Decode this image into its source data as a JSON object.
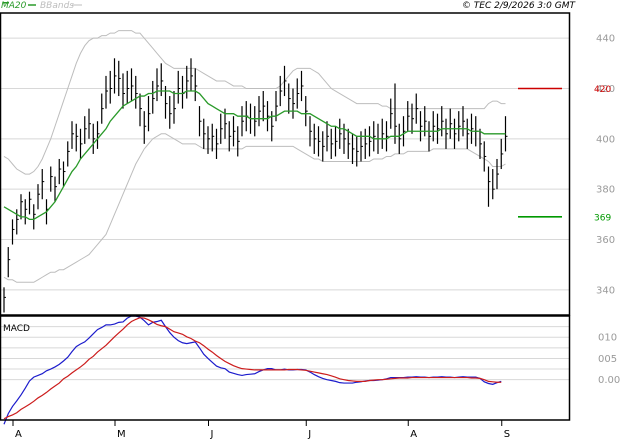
{
  "header": {
    "legend": [
      {
        "label": "MA20",
        "color": "#2a9a2a"
      },
      {
        "label": "BBands",
        "color": "#bdbdbd"
      }
    ],
    "copyright": "© TEC 2/9/2026 3:0 GMT"
  },
  "chart_data": [
    {
      "type": "candlestick",
      "title": "",
      "ylim": [
        330,
        450
      ],
      "y_ticks": [
        340,
        360,
        380,
        400,
        420,
        440
      ],
      "x_ticks": [
        {
          "label": "A",
          "bar": 0
        },
        {
          "label": "M",
          "bar": 24
        },
        {
          "label": "J",
          "bar": 46
        },
        {
          "label": "J",
          "bar": 69
        },
        {
          "label": "A",
          "bar": 93
        },
        {
          "label": "S",
          "bar": 115
        }
      ],
      "grid": true,
      "series": [
        {
          "name": "MA20",
          "color": "#2a9a2a"
        },
        {
          "name": "BBands",
          "color": "#bdbdbd"
        }
      ],
      "close": [
        337,
        352,
        364,
        368,
        375,
        372,
        376,
        370,
        378,
        383,
        372,
        385,
        381,
        388,
        387,
        395,
        402,
        401,
        398,
        404,
        406,
        400,
        402,
        412,
        419,
        420,
        425,
        424,
        418,
        420,
        421,
        418,
        412,
        405,
        410,
        416,
        421,
        423,
        414,
        410,
        412,
        420,
        418,
        423,
        425,
        421,
        407,
        402,
        400,
        401,
        398,
        404,
        406,
        401,
        403,
        399,
        407,
        409,
        408,
        407,
        411,
        413,
        409,
        405,
        413,
        419,
        423,
        416,
        414,
        418,
        421,
        411,
        403,
        400,
        399,
        397,
        401,
        398,
        399,
        402,
        400,
        398,
        396,
        395,
        397,
        398,
        399,
        401,
        400,
        402,
        401,
        410,
        405,
        400,
        403,
        409,
        408,
        412,
        405,
        407,
        401,
        405,
        404,
        407,
        402,
        406,
        402,
        405,
        407,
        402,
        404,
        403,
        398,
        393,
        383,
        380,
        386,
        394,
        401
      ],
      "high": [
        341,
        357,
        368,
        372,
        378,
        376,
        379,
        374,
        382,
        388,
        376,
        389,
        385,
        392,
        391,
        399,
        407,
        406,
        404,
        409,
        412,
        406,
        407,
        418,
        425,
        427,
        432,
        431,
        426,
        427,
        428,
        425,
        418,
        411,
        417,
        423,
        428,
        430,
        421,
        417,
        419,
        427,
        425,
        429,
        432,
        428,
        413,
        408,
        405,
        406,
        404,
        410,
        412,
        407,
        409,
        405,
        413,
        415,
        414,
        413,
        417,
        419,
        415,
        411,
        419,
        425,
        429,
        422,
        420,
        424,
        427,
        417,
        409,
        406,
        405,
        403,
        407,
        404,
        405,
        408,
        406,
        404,
        402,
        401,
        403,
        404,
        405,
        407,
        406,
        408,
        407,
        416,
        422,
        406,
        409,
        415,
        414,
        418,
        411,
        413,
        407,
        411,
        410,
        413,
        408,
        412,
        408,
        411,
        413,
        408,
        410,
        409,
        404,
        399,
        389,
        388,
        392,
        400,
        409
      ],
      "low": [
        331,
        345,
        358,
        362,
        368,
        366,
        370,
        364,
        372,
        376,
        366,
        379,
        375,
        382,
        381,
        389,
        396,
        395,
        392,
        398,
        400,
        394,
        396,
        406,
        412,
        414,
        418,
        417,
        412,
        414,
        415,
        412,
        405,
        398,
        403,
        410,
        415,
        417,
        408,
        404,
        406,
        414,
        412,
        416,
        419,
        415,
        401,
        396,
        394,
        395,
        392,
        398,
        400,
        395,
        397,
        393,
        401,
        403,
        402,
        401,
        405,
        407,
        403,
        399,
        407,
        413,
        417,
        410,
        408,
        412,
        415,
        405,
        397,
        394,
        393,
        391,
        395,
        392,
        393,
        396,
        394,
        392,
        390,
        389,
        391,
        392,
        393,
        395,
        394,
        396,
        395,
        404,
        398,
        394,
        397,
        403,
        402,
        406,
        399,
        401,
        395,
        399,
        398,
        401,
        396,
        400,
        396,
        399,
        401,
        396,
        398,
        397,
        392,
        387,
        373,
        376,
        380,
        388,
        395
      ],
      "ma20": [
        373,
        372,
        371,
        370,
        369,
        369,
        368,
        368,
        369,
        370,
        371,
        373,
        375,
        378,
        381,
        384,
        387,
        389,
        392,
        394,
        396,
        398,
        400,
        402,
        404,
        407,
        409,
        411,
        413,
        414,
        415,
        416,
        417,
        417,
        418,
        418,
        419,
        419,
        419,
        419,
        418,
        418,
        418,
        419,
        419,
        419,
        418,
        416,
        414,
        413,
        412,
        411,
        410,
        410,
        410,
        409,
        409,
        409,
        408,
        408,
        408,
        408,
        408,
        409,
        409,
        410,
        411,
        411,
        411,
        411,
        410,
        410,
        410,
        409,
        408,
        407,
        406,
        405,
        405,
        404,
        404,
        403,
        402,
        401,
        401,
        401,
        401,
        400,
        400,
        400,
        400,
        401,
        401,
        401,
        402,
        403,
        403,
        403,
        403,
        403,
        403,
        403,
        403,
        404,
        404,
        404,
        404,
        404,
        404,
        404,
        403,
        403,
        403,
        402,
        402,
        402,
        402,
        402,
        402
      ],
      "bb_upper": [
        393,
        392,
        390,
        388,
        387,
        386,
        386,
        387,
        389,
        392,
        396,
        400,
        405,
        410,
        415,
        420,
        425,
        430,
        434,
        437,
        439,
        440,
        440,
        441,
        441,
        442,
        442,
        443,
        443,
        443,
        443,
        442,
        442,
        440,
        438,
        436,
        434,
        432,
        430,
        429,
        428,
        428,
        428,
        428,
        428,
        428,
        427,
        426,
        425,
        424,
        423,
        423,
        423,
        422,
        421,
        421,
        421,
        420,
        420,
        420,
        420,
        420,
        420,
        420,
        420,
        421,
        423,
        425,
        427,
        428,
        428,
        428,
        428,
        427,
        426,
        424,
        422,
        420,
        419,
        418,
        417,
        416,
        415,
        414,
        414,
        414,
        414,
        414,
        414,
        413,
        413,
        412,
        412,
        412,
        412,
        412,
        412,
        412,
        412,
        412,
        412,
        412,
        412,
        412,
        412,
        412,
        412,
        412,
        412,
        412,
        412,
        412,
        412,
        412,
        414,
        415,
        415,
        414,
        414
      ],
      "bb_lower": [
        345,
        344,
        344,
        343,
        343,
        343,
        343,
        343,
        344,
        345,
        346,
        347,
        347,
        348,
        348,
        349,
        350,
        351,
        352,
        353,
        354,
        356,
        358,
        360,
        362,
        366,
        370,
        374,
        378,
        382,
        386,
        390,
        393,
        396,
        398,
        400,
        401,
        402,
        402,
        401,
        400,
        399,
        398,
        398,
        398,
        398,
        397,
        396,
        396,
        396,
        396,
        396,
        396,
        396,
        396,
        396,
        396,
        397,
        397,
        397,
        397,
        397,
        397,
        397,
        397,
        397,
        397,
        397,
        397,
        396,
        395,
        394,
        393,
        392,
        392,
        391,
        391,
        391,
        391,
        391,
        391,
        391,
        391,
        391,
        391,
        391,
        391,
        392,
        392,
        392,
        393,
        393,
        394,
        394,
        394,
        395,
        395,
        395,
        395,
        395,
        395,
        396,
        396,
        396,
        396,
        396,
        396,
        396,
        396,
        396,
        395,
        394,
        393,
        392,
        391,
        389,
        389,
        389,
        390
      ],
      "annotations": [
        {
          "label": "420",
          "value": 420,
          "color": "#cc0000"
        },
        {
          "label": "369",
          "value": 369,
          "color": "#009900"
        }
      ]
    },
    {
      "type": "line",
      "title": "MACD",
      "ylim": [
        -9.5,
        15
      ],
      "y_ticks": [
        {
          "label": "0.00",
          "value": 0
        },
        {
          "label": "005",
          "value": 5
        },
        {
          "label": "010",
          "value": 10
        }
      ],
      "grid": true,
      "series": [
        {
          "name": "MACD",
          "color": "#1c1ccc",
          "values": [
            -10.5,
            -8,
            -6.3,
            -5,
            -3.6,
            -2,
            -0.3,
            0.6,
            1,
            1.4,
            2.1,
            2.5,
            3,
            3.6,
            4.4,
            5.3,
            6.6,
            7.8,
            8.4,
            8.9,
            9.8,
            10.8,
            11.8,
            12.3,
            12.9,
            12.9,
            13.1,
            13.5,
            13.6,
            14.5,
            15,
            15,
            14.7,
            13.9,
            12.9,
            13.5,
            13.7,
            14,
            12.5,
            11.1,
            10,
            9.2,
            8.7,
            8.5,
            8.7,
            8.9,
            7.5,
            6,
            5,
            4.1,
            3.2,
            2.8,
            2.6,
            1.8,
            1.5,
            1.2,
            1,
            1.2,
            1.3,
            1.4,
            1.9,
            2.3,
            2.6,
            2.6,
            2.3,
            2.3,
            2.5,
            2.3,
            2.3,
            2.4,
            2.4,
            2.3,
            1.8,
            1.2,
            0.7,
            0.3,
            0,
            -0.2,
            -0.4,
            -0.7,
            -0.8,
            -0.8,
            -0.8,
            -0.6,
            -0.5,
            -0.3,
            -0.2,
            -0.2,
            -0.1,
            0,
            0.2,
            0.5,
            0.5,
            0.5,
            0.5,
            0.6,
            0.6,
            0.7,
            0.6,
            0.6,
            0.5,
            0.6,
            0.6,
            0.7,
            0.6,
            0.6,
            0.5,
            0.6,
            0.7,
            0.6,
            0.6,
            0.6,
            0.3,
            -0.5,
            -0.9,
            -1.1,
            -0.7,
            -0.4
          ]
        },
        {
          "name": "Signal",
          "color": "#cc1c1c",
          "values": [
            -9.2,
            -8.7,
            -8.3,
            -7.8,
            -7,
            -6.4,
            -5.8,
            -5.1,
            -4.3,
            -3.7,
            -3,
            -2.2,
            -1.5,
            -0.8,
            0.2,
            0.8,
            1.6,
            2.3,
            3,
            3.8,
            4.8,
            5.5,
            6.5,
            7.3,
            8.1,
            9.1,
            10.1,
            11,
            11.9,
            12.9,
            13.7,
            14.2,
            14.6,
            14.5,
            14.1,
            13.6,
            13,
            12.7,
            12.5,
            11.9,
            11.3,
            11,
            10.7,
            10.1,
            9.7,
            9.1,
            8.7,
            8,
            7.2,
            6.5,
            5.7,
            5,
            4.3,
            3.8,
            3.3,
            2.9,
            2.6,
            2.5,
            2.4,
            2.3,
            2.3,
            2.3,
            2.3,
            2.3,
            2.3,
            2.3,
            2.3,
            2.4,
            2.4,
            2.4,
            2.3,
            2.2,
            2,
            1.8,
            1.6,
            1.4,
            1.2,
            0.9,
            0.6,
            0.2,
            0,
            -0.2,
            -0.3,
            -0.4,
            -0.4,
            -0.4,
            -0.2,
            -0.1,
            0,
            0,
            0.1,
            0.2,
            0.3,
            0.4,
            0.4,
            0.4,
            0.5,
            0.5,
            0.5,
            0.5,
            0.5,
            0.5,
            0.5,
            0.5,
            0.5,
            0.5,
            0.5,
            0.5,
            0.5,
            0.5,
            0.4,
            0.4,
            0.3,
            0,
            -0.4,
            -0.5,
            -0.6,
            -0.6
          ]
        }
      ]
    }
  ]
}
